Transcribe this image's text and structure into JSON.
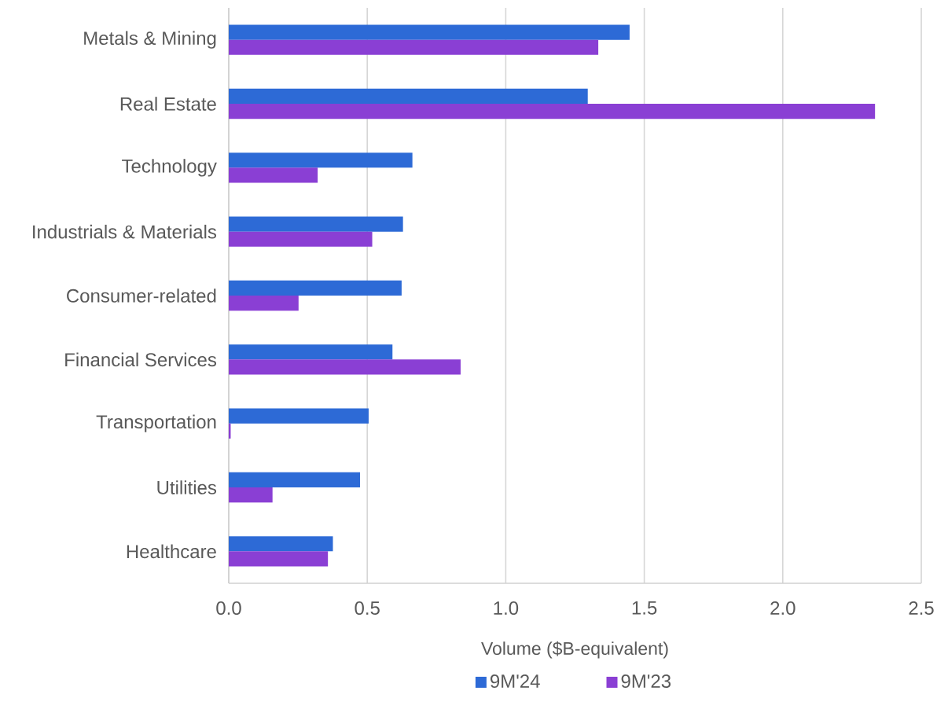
{
  "chart_data": {
    "type": "bar",
    "orientation": "horizontal",
    "xlabel": "Volume ($B-equivalent)",
    "categories": [
      "Metals & Mining",
      "Real Estate",
      "Technology",
      "Industrials & Materials",
      "Consumer-related",
      "Financial Services",
      "Transportation",
      "Utilities",
      "Healthcare"
    ],
    "series": [
      {
        "name": "9M'24",
        "color": "#2d6ad6",
        "values": [
          1.447,
          1.296,
          0.663,
          0.629,
          0.624,
          0.591,
          0.505,
          0.474,
          0.376
        ]
      },
      {
        "name": "9M'23",
        "color": "#8a3fd4",
        "values": [
          1.334,
          2.333,
          0.321,
          0.518,
          0.252,
          0.837,
          0.007,
          0.158,
          0.358
        ]
      }
    ],
    "xlim": [
      0,
      2.5
    ],
    "xticks": [
      {
        "value": 0,
        "label": "0.0"
      },
      {
        "value": 0.5,
        "label": "0.5"
      },
      {
        "value": 1,
        "label": "1.0"
      },
      {
        "value": 1.5,
        "label": "1.5"
      },
      {
        "value": 2,
        "label": "2.0"
      },
      {
        "value": 2.5,
        "label": "2.5"
      }
    ],
    "grid": "x",
    "legend": "bottom"
  }
}
